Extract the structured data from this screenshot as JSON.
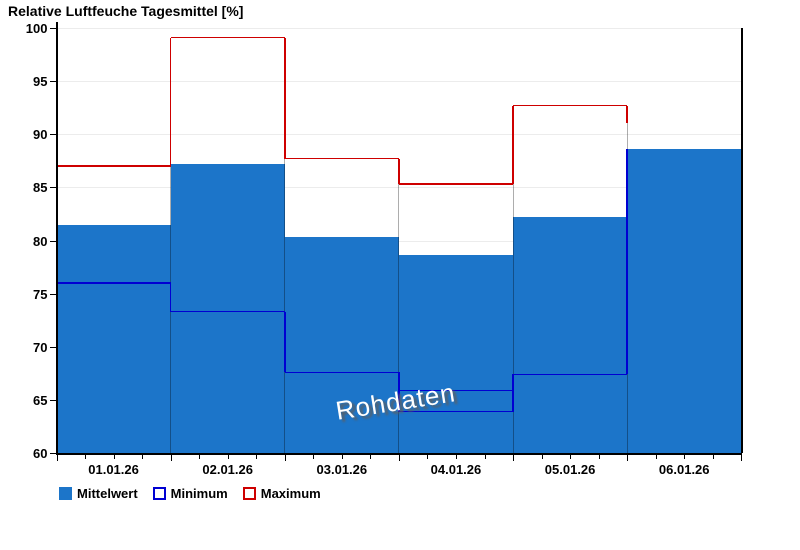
{
  "title": "Relative Luftfeuche Tagesmittel [%]",
  "watermark": "Rohdaten",
  "legend": {
    "mean_label": "Mittelwert",
    "min_label": "Minimum",
    "max_label": "Maximum"
  },
  "colors": {
    "mean_fill": "#1c75c9",
    "min_line": "#0000d2",
    "max_line": "#ce0000",
    "grid": "#ececec",
    "axis": "#000000",
    "watermark_text": "#ffffff",
    "watermark_shadow": "#5f5f5f"
  },
  "chart_data": {
    "type": "bar",
    "title": "Relative Luftfeuche Tagesmittel [%]",
    "xlabel": "",
    "ylabel": "",
    "categories": [
      "01.01.26",
      "02.01.26",
      "03.01.26",
      "04.01.26",
      "05.01.26",
      "06.01.26"
    ],
    "series": [
      {
        "name": "Mittelwert",
        "style": "filled-bar",
        "values": [
          81.5,
          87.2,
          80.3,
          78.6,
          82.2,
          88.6
        ]
      },
      {
        "name": "Minimum",
        "style": "step-line",
        "values": [
          76.0,
          73.3,
          67.6,
          63.9,
          67.4,
          null
        ]
      },
      {
        "name": "Maximum",
        "style": "step-line",
        "values": [
          87.0,
          99.1,
          87.7,
          85.3,
          92.7,
          null
        ]
      }
    ],
    "extra_min_segments": [
      {
        "index": 3,
        "value": 65.9
      }
    ],
    "ylim": [
      60,
      100
    ],
    "y_ticks": [
      60,
      65,
      70,
      75,
      80,
      85,
      90,
      95,
      100
    ],
    "grid": "horizontal",
    "legend_position": "bottom-left",
    "annotations": [
      "Rohdaten"
    ]
  }
}
